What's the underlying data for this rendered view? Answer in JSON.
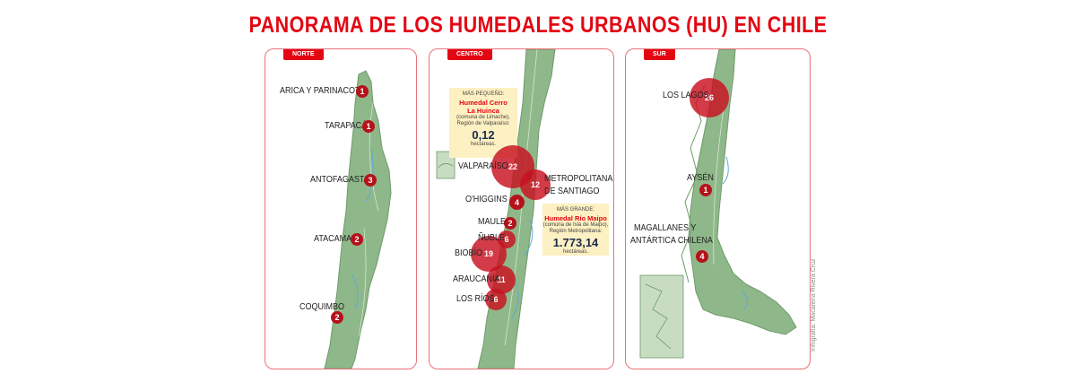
{
  "title": "PANORAMA DE LOS HUMEDALES URBANOS (HU) EN CHILE",
  "colors": {
    "accent": "#e30613",
    "land": "#8fb88a",
    "bubble": "#c8101e",
    "info_box": "#fdf0c2"
  },
  "panels": {
    "norte": {
      "tab": "NORTE",
      "regions": [
        {
          "name": "ARICA Y PARINACOTA",
          "count": "1"
        },
        {
          "name": "TARAPACÁ",
          "count": "1"
        },
        {
          "name": "ANTOFAGASTA",
          "count": "3"
        },
        {
          "name": "ATACAMA",
          "count": "2"
        },
        {
          "name": "COQUIMBO",
          "count": "2"
        }
      ]
    },
    "centro": {
      "tab": "CENTRO",
      "regions": [
        {
          "name": "VALPARAÍSO",
          "count": "22"
        },
        {
          "name": "METROPOLITANA DE SANTIAGO",
          "line1": "METROPOLITANA",
          "line2": "DE SANTIAGO",
          "count": "12"
        },
        {
          "name": "O'HIGGINS",
          "count": "4"
        },
        {
          "name": "MAULE",
          "count": "2"
        },
        {
          "name": "ÑUBLE",
          "count": "6"
        },
        {
          "name": "BIOBÍO",
          "count": "19"
        },
        {
          "name": "ARAUCANÍA",
          "count": "11"
        },
        {
          "name": "LOS RÍOS",
          "count": "6"
        }
      ],
      "smallest": {
        "label": "MÁS PEQUEÑO:",
        "name_line1": "Humedal Cerro",
        "name_line2": "La Huinca",
        "detail_line1": "(comuna de Limache),",
        "detail_line2": "Región de Valparaíso:",
        "value": "0,12",
        "unit": "hectáreas."
      },
      "largest": {
        "label": "MÁS GRANDE:",
        "name": "Humedal Río Maipo",
        "detail_line1": "(comuna de Isla de Maipo),",
        "detail_line2": "Región Metropolitana:",
        "value": "1.773,14",
        "unit": "hectáreas."
      }
    },
    "sur": {
      "tab": "SUR",
      "regions": [
        {
          "name": "LOS LAGOS",
          "count": "26"
        },
        {
          "name": "AYSÉN",
          "count": "1"
        },
        {
          "name": "MAGALLANES Y ANTÁRTICA CHILENA",
          "line1": "MAGALLANES Y",
          "line2": "ANTÁRTICA CHILENA",
          "count": "4"
        }
      ]
    }
  },
  "credit": "Infografía: Macarena Rivera Cruz"
}
